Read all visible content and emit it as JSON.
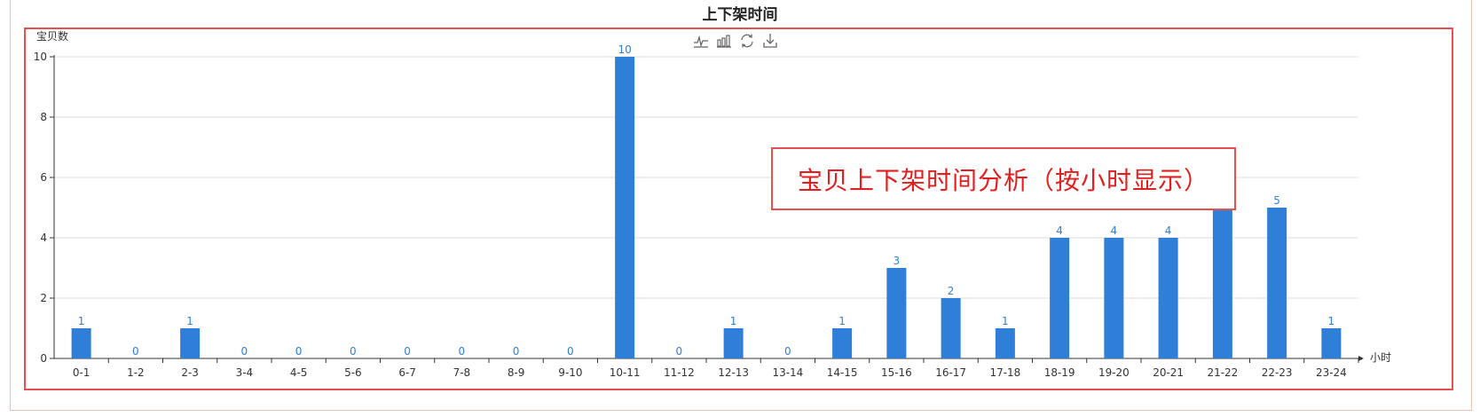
{
  "title": "上下架时间",
  "annotation": "宝贝上下架时间分析（按小时显示）",
  "toolbox": [
    {
      "name": "line-chart-icon"
    },
    {
      "name": "bar-chart-icon"
    },
    {
      "name": "restore-icon"
    },
    {
      "name": "download-icon"
    }
  ],
  "colors": {
    "bar": "#2f7ed8",
    "label": "#2f7ed8",
    "frame": "#e94f4f",
    "annotation_text": "#e31e1e"
  },
  "chart_data": {
    "type": "bar",
    "title": "上下架时间",
    "ylabel": "宝贝数",
    "xlabel": "小时",
    "ylim": [
      0,
      10
    ],
    "yticks": [
      0,
      2,
      4,
      6,
      8,
      10
    ],
    "grid": true,
    "categories": [
      "0-1",
      "1-2",
      "2-3",
      "3-4",
      "4-5",
      "5-6",
      "6-7",
      "7-8",
      "8-9",
      "9-10",
      "10-11",
      "11-12",
      "12-13",
      "13-14",
      "14-15",
      "15-16",
      "16-17",
      "17-18",
      "18-19",
      "19-20",
      "20-21",
      "21-22",
      "22-23",
      "23-24"
    ],
    "values": [
      1,
      0,
      1,
      0,
      0,
      0,
      0,
      0,
      0,
      0,
      10,
      0,
      1,
      0,
      1,
      3,
      2,
      1,
      4,
      4,
      4,
      5,
      5,
      1
    ]
  }
}
